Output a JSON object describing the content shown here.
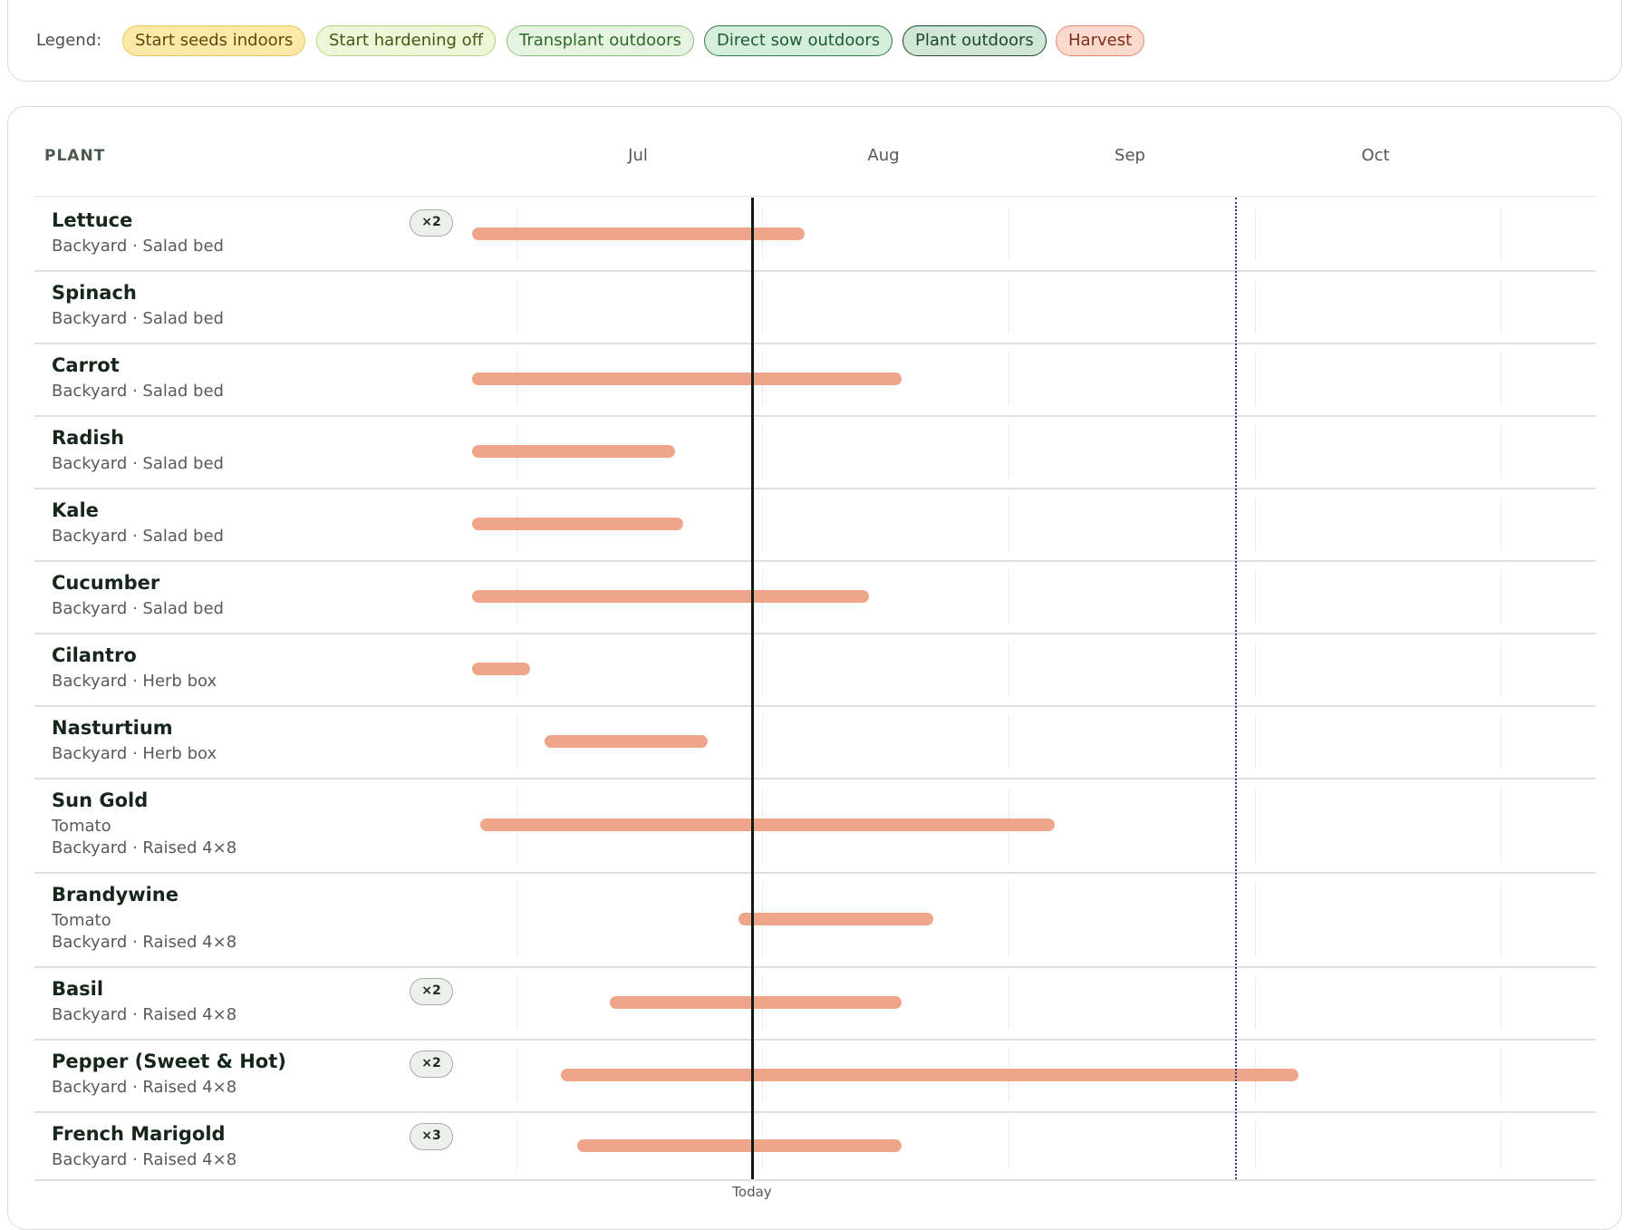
{
  "legend": {
    "label": "Legend:",
    "items": [
      {
        "key": "seeds",
        "label": "Start seeds indoors",
        "color": "#fce9a8"
      },
      {
        "key": "harden",
        "label": "Start hardening off",
        "color": "#eef6d8"
      },
      {
        "key": "trans",
        "label": "Transplant outdoors",
        "color": "#e6f3e0"
      },
      {
        "key": "direct",
        "label": "Direct sow outdoors",
        "color": "#d6eedc"
      },
      {
        "key": "plant",
        "label": "Plant outdoors",
        "color": "#d1e6d6"
      },
      {
        "key": "harvest",
        "label": "Harvest",
        "color": "#fbd9cd"
      }
    ]
  },
  "timeline": {
    "plant_header": "PLANT",
    "months": [
      "Jul",
      "Aug",
      "Sep",
      "Oct"
    ],
    "today_label": "Today",
    "today_color": "#0f1a12",
    "frost_line_color": "#2a3b88",
    "harvest_bar_color": "#efa589"
  },
  "plants": [
    {
      "name": "Lettuce",
      "variety": "",
      "location": "Backyard · Salad bed",
      "qty": "×2"
    },
    {
      "name": "Spinach",
      "variety": "",
      "location": "Backyard · Salad bed",
      "qty": ""
    },
    {
      "name": "Carrot",
      "variety": "",
      "location": "Backyard · Salad bed",
      "qty": ""
    },
    {
      "name": "Radish",
      "variety": "",
      "location": "Backyard · Salad bed",
      "qty": ""
    },
    {
      "name": "Kale",
      "variety": "",
      "location": "Backyard · Salad bed",
      "qty": ""
    },
    {
      "name": "Cucumber",
      "variety": "",
      "location": "Backyard · Salad bed",
      "qty": ""
    },
    {
      "name": "Cilantro",
      "variety": "",
      "location": "Backyard · Herb box",
      "qty": ""
    },
    {
      "name": "Nasturtium",
      "variety": "",
      "location": "Backyard · Herb box",
      "qty": ""
    },
    {
      "name": "Sun Gold",
      "variety": "Tomato",
      "location": "Backyard · Raised 4×8",
      "qty": ""
    },
    {
      "name": "Brandywine",
      "variety": "Tomato",
      "location": "Backyard · Raised 4×8",
      "qty": ""
    },
    {
      "name": "Basil",
      "variety": "",
      "location": "Backyard · Raised 4×8",
      "qty": "×2"
    },
    {
      "name": "Pepper (Sweet & Hot)",
      "variety": "",
      "location": "Backyard · Raised 4×8",
      "qty": "×2"
    },
    {
      "name": "French Marigold",
      "variety": "",
      "location": "Backyard · Raised 4×8",
      "qty": "×3"
    }
  ]
}
